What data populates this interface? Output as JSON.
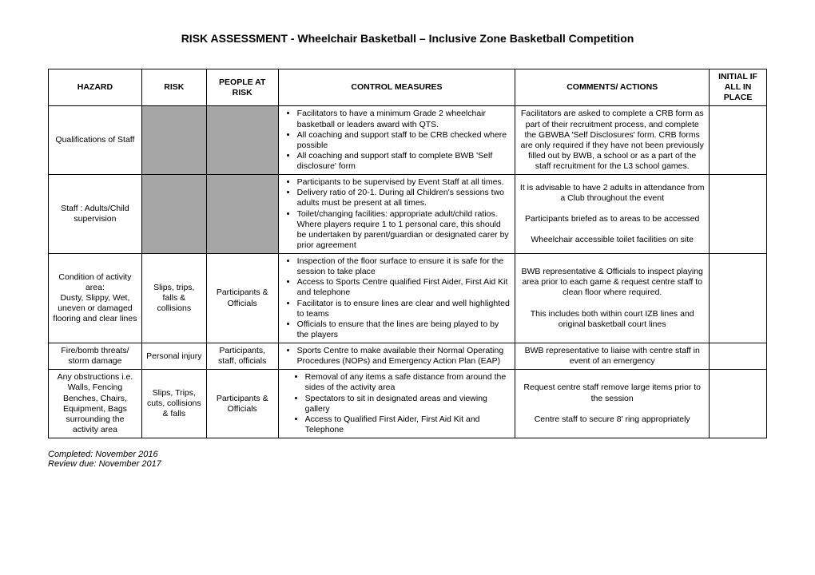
{
  "title": "RISK ASSESSMENT - Wheelchair Basketball – Inclusive Zone Basketball Competition",
  "headers": {
    "hazard": "HAZARD",
    "risk": "RISK",
    "people": "PEOPLE AT RISK",
    "control": "CONTROL MEASURES",
    "comments": "COMMENTS/ ACTIONS",
    "initial": "INITIAL IF ALL IN PLACE"
  },
  "rows": [
    {
      "hazard": "Qualifications of Staff",
      "risk": "",
      "people": "",
      "shadedRisk": true,
      "shadedPeople": true,
      "controls": [
        "Facilitators to have a minimum Grade 2 wheelchair basketball or leaders award with QTS.",
        "All coaching and support staff to be CRB checked where possible",
        "All coaching and support staff to complete BWB 'Self disclosure' form"
      ],
      "comments": "Facilitators are asked to complete a CRB form as part of their recruitment process, and complete the GBWBA 'Self Disclosures' form. CRB forms are only required if they have not been previously filled out by BWB, a school or as a part of the staff recruitment for the L3 school games."
    },
    {
      "hazard": "Staff : Adults/Child supervision",
      "risk": "",
      "people": "",
      "shadedRisk": true,
      "shadedPeople": true,
      "controls": [
        "Participants to be supervised by Event Staff at all times.",
        "Delivery ratio of 20-1. During all Children's sessions two adults must be present at all times.",
        "Toilet/changing facilities: appropriate adult/child ratios.  Where players require 1 to 1 personal care, this should be undertaken by parent/guardian or designated carer by prior agreement"
      ],
      "comments": "It is advisable to have 2 adults in attendance from a Club throughout the event\n\nParticipants briefed as to areas to be accessed\n\nWheelchair accessible toilet facilities on site"
    },
    {
      "hazard": "Condition of activity area:\nDusty, Slippy, Wet, uneven  or damaged flooring  and clear lines",
      "risk": "Slips, trips, falls & collisions",
      "people": "Participants & Officials",
      "controls": [
        "Inspection of the floor surface to ensure it is safe for the session to take place",
        "Access to Sports Centre qualified First Aider, First Aid Kit and telephone",
        "Facilitator is to ensure lines are clear and well highlighted to teams",
        "Officials to ensure that the lines are being played to by the players"
      ],
      "comments": "BWB representative & Officials to inspect playing area prior to each game & request centre staff to clean floor where required.\n\nThis includes both within court IZB lines and original basketball court lines"
    },
    {
      "hazard": "Fire/bomb threats/ storm damage",
      "risk": "Personal injury",
      "people": "Participants, staff, officials",
      "controls": [
        "Sports Centre to make available their Normal Operating Procedures (NOPs) and Emergency Action Plan (EAP)"
      ],
      "comments": "BWB representative to liaise with centre staff in event of  an emergency"
    },
    {
      "hazard": "Any obstructions i.e. Walls, Fencing Benches, Chairs, Equipment, Bags surrounding the activity area",
      "risk": "Slips, Trips, cuts, collisions & falls",
      "people": "Participants & Officials",
      "controlsIndent": true,
      "controls": [
        "Removal of any items a safe distance from around the sides of the activity area",
        "Spectators to sit in designated areas and viewing gallery",
        "Access to Qualified First Aider, First Aid Kit and Telephone"
      ],
      "comments": "Request centre staff remove large items prior to the session\n\nCentre staff to secure 8' ring appropriately"
    }
  ],
  "footer": {
    "completed": "Completed: November 2016",
    "review": "Review due: November 2017"
  }
}
